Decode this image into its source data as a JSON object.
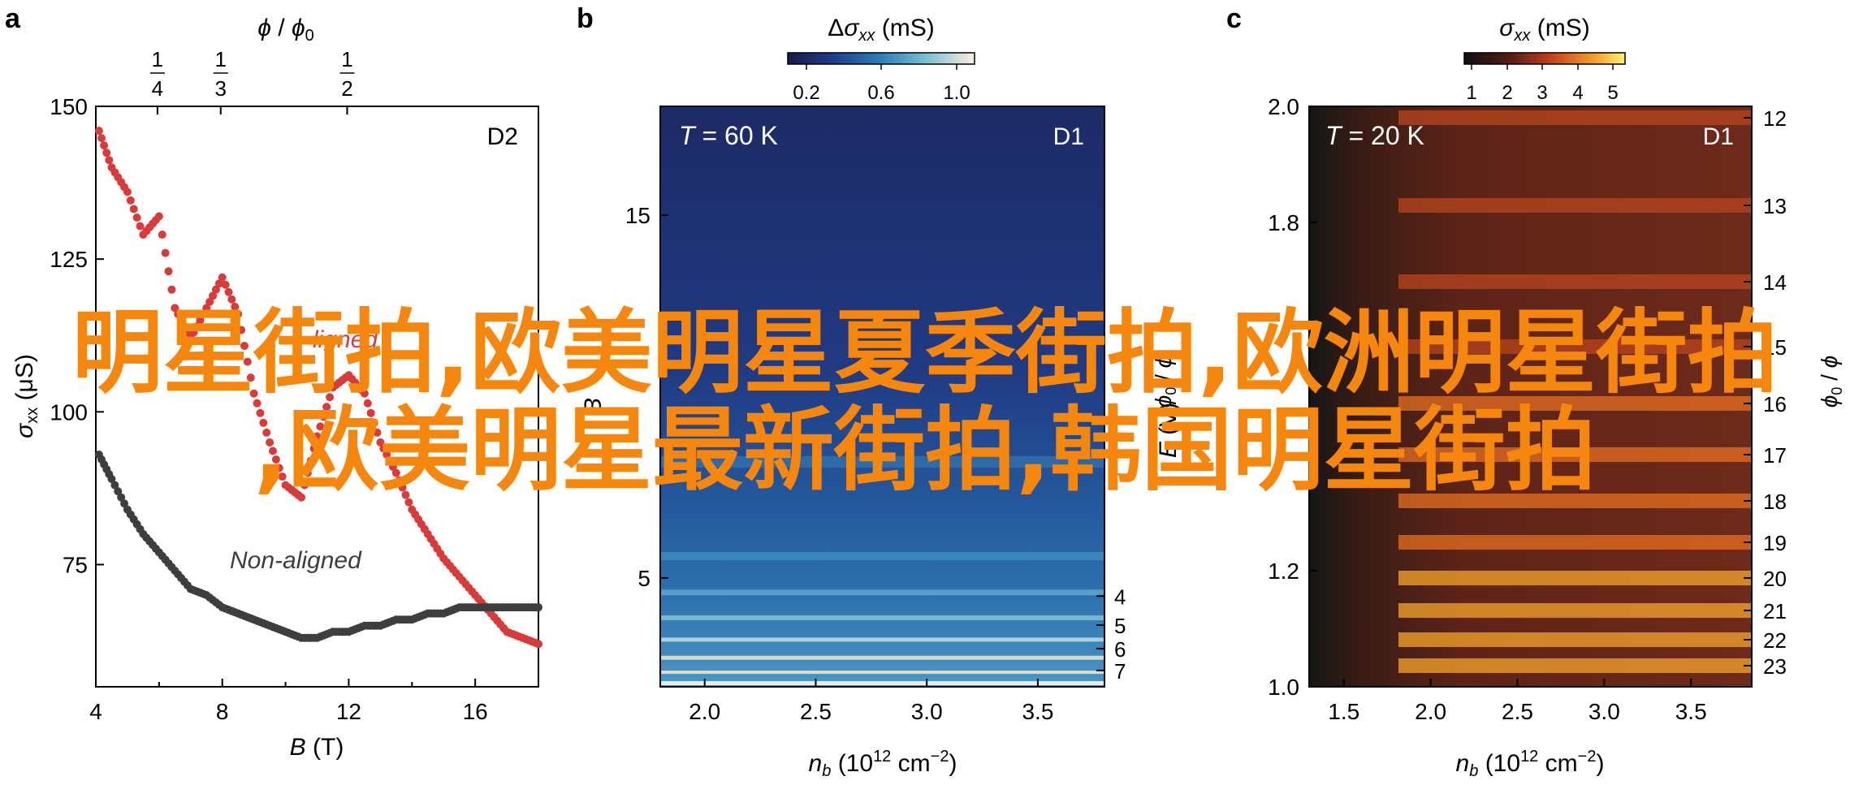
{
  "panels": [
    {
      "letter": "a",
      "tag": "D2"
    },
    {
      "letter": "b",
      "tag": "D1",
      "temp_var": "T",
      "temp_val": " = 60 K"
    },
    {
      "letter": "c",
      "tag": "D1",
      "temp_var": "T",
      "temp_val": " = 20 K"
    }
  ],
  "chart_data": [
    {
      "type": "scatter",
      "panel": "a",
      "xlabel": "B (T)",
      "ylabel": "σxx (μS)",
      "top_axis_label": "ϕ / ϕ0",
      "xlim": [
        4,
        18
      ],
      "ylim": [
        55,
        150
      ],
      "xticks": [
        "4",
        "8",
        "12",
        "16"
      ],
      "yticks": [
        "75",
        "100",
        "125",
        "150"
      ],
      "top_ticks": [
        {
          "num": "1",
          "den": "4",
          "x": 5.95
        },
        {
          "num": "1",
          "den": "3",
          "x": 7.95
        },
        {
          "num": "1",
          "den": "2",
          "x": 11.95
        }
      ],
      "series": [
        {
          "name": "Aligned",
          "color": "#d93a3a",
          "x": [
            4.1,
            4.5,
            5,
            5.5,
            6,
            6.5,
            7,
            7.5,
            8,
            8.5,
            9,
            9.5,
            10,
            10.5,
            11,
            11.5,
            12,
            12.5,
            13,
            13.5,
            14,
            14.5,
            15,
            15.5,
            16,
            16.5,
            17,
            17.5,
            18
          ],
          "y": [
            146,
            140,
            136,
            129,
            132,
            117,
            112,
            117,
            122,
            116,
            103,
            95,
            88,
            86,
            96,
            104,
            106,
            103,
            95,
            90,
            84,
            80,
            76,
            73,
            70,
            67,
            64,
            63,
            62
          ]
        },
        {
          "name": "Non-aligned",
          "color": "#3e3e3e",
          "x": [
            4.1,
            4.5,
            5,
            5.5,
            6,
            6.5,
            7,
            7.5,
            8,
            8.5,
            9,
            9.5,
            10,
            10.5,
            11,
            11.5,
            12,
            12.5,
            13,
            13.5,
            14,
            14.5,
            15,
            15.5,
            16,
            16.5,
            17,
            17.5,
            18
          ],
          "y": [
            93,
            89,
            84,
            80,
            77,
            74,
            71,
            70,
            68,
            67,
            66,
            65,
            64,
            63,
            63,
            64,
            64,
            65,
            65,
            66,
            66,
            67,
            67,
            68,
            68,
            68,
            68,
            68,
            68
          ]
        }
      ]
    },
    {
      "type": "heatmap",
      "panel": "b",
      "xlabel": "nb (10^12 cm^-2)",
      "ylabel": "B (T)",
      "right_axis_label": "ϕ0 / ϕ",
      "colorbar_label": "Δσxx (mS)",
      "colorbar_ticks": [
        "0.2",
        "0.6",
        "1.0"
      ],
      "xlim": [
        1.8,
        3.8
      ],
      "ylim": [
        2,
        18
      ],
      "xticks": [
        "2.0",
        "2.5",
        "3.0",
        "3.5"
      ],
      "yticks": [
        "5",
        "15"
      ],
      "right_ticks": [
        "4",
        "5",
        "6",
        "7"
      ]
    },
    {
      "type": "heatmap",
      "panel": "c",
      "xlabel": "nb (10^12 cm^-2)",
      "ylabel": "E (V)",
      "right_axis_label": "ϕ0 / ϕ",
      "colorbar_label": "σxx (mS)",
      "colorbar_ticks": [
        "1",
        "2",
        "3",
        "4",
        "5"
      ],
      "xlim": [
        1.3,
        3.85
      ],
      "ylim": [
        1.0,
        2.0
      ],
      "xticks": [
        "1.5",
        "2.0",
        "2.5",
        "3.0",
        "3.5"
      ],
      "yticks": [
        "1.0",
        "1.2",
        "1.8",
        "2.0"
      ],
      "right_ticks": [
        "12",
        "13",
        "14",
        "15",
        "16",
        "17",
        "18",
        "19",
        "20",
        "21",
        "22",
        "23"
      ]
    }
  ],
  "overlay": {
    "line1": "明星街拍,欧美明星夏季街拍,欧洲明星街拍",
    "line2": ",欧美明星最新街拍,韩国明星街拍"
  }
}
